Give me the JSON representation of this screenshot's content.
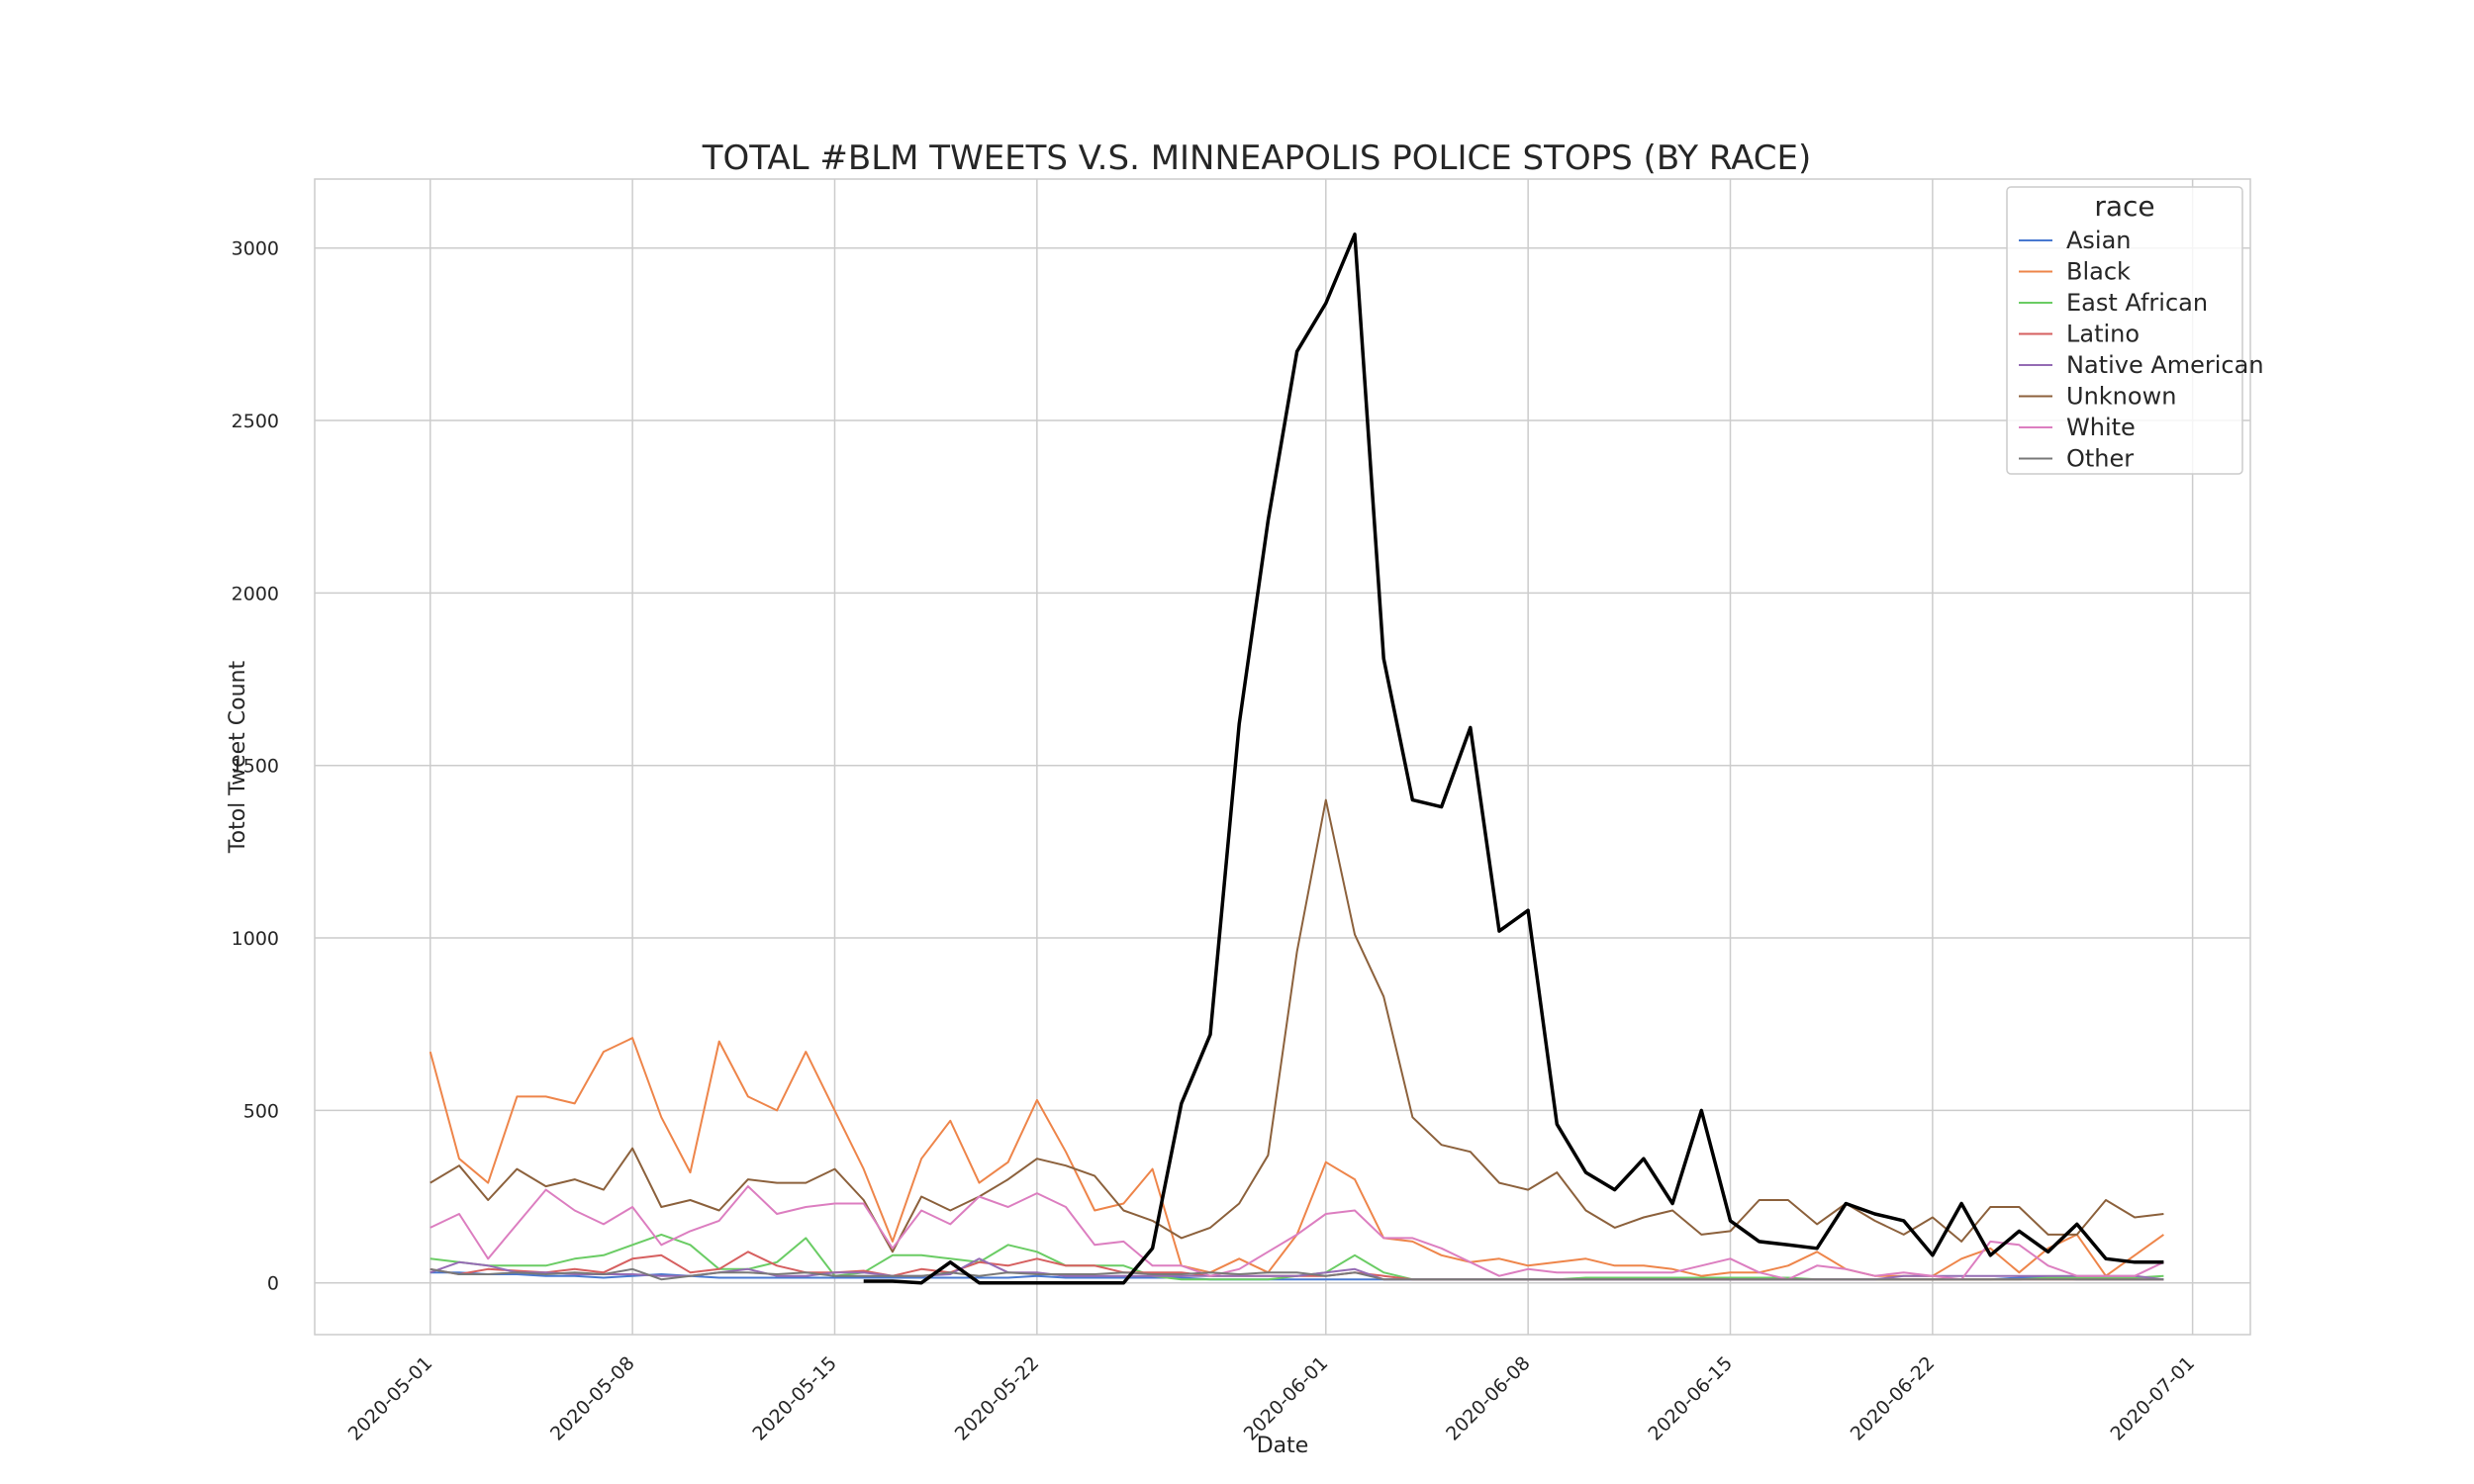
{
  "chart_data": {
    "type": "line",
    "title": "TOTAL #BLM TWEETS V.S. MINNEAPOLIS POLICE STOPS (BY RACE)",
    "xlabel": "Date",
    "ylabel": "Totol Tweet Count",
    "x_start": "2020-05-01",
    "x_end": "2020-06-30",
    "xlim": [
      "2020-04-27",
      "2020-07-03"
    ],
    "ylim": [
      -150,
      3200
    ],
    "x_ticks": [
      "2020-05-01",
      "2020-05-08",
      "2020-05-15",
      "2020-05-22",
      "2020-06-01",
      "2020-06-08",
      "2020-06-15",
      "2020-06-22",
      "2020-07-01"
    ],
    "y_ticks": [
      0,
      500,
      1000,
      1500,
      2000,
      2500,
      3000
    ],
    "grid": true,
    "legend": {
      "title": "race",
      "placement": "top-right"
    },
    "series": [
      {
        "name": "Asian",
        "color": "#4878d0",
        "values": [
          30,
          30,
          25,
          25,
          20,
          20,
          15,
          20,
          25,
          20,
          15,
          15,
          15,
          15,
          15,
          15,
          15,
          15,
          15,
          15,
          15,
          20,
          15,
          15,
          15,
          15,
          15,
          10,
          10,
          10,
          10,
          10,
          10,
          10,
          10,
          10,
          10,
          10,
          10,
          10,
          10,
          10,
          10,
          10,
          10,
          10,
          10,
          10,
          10,
          10,
          10,
          10,
          10,
          10,
          10,
          15,
          15,
          10,
          10,
          10,
          10
        ]
      },
      {
        "name": "Black",
        "color": "#ee854a",
        "values": [
          670,
          360,
          290,
          540,
          540,
          520,
          670,
          710,
          480,
          320,
          700,
          540,
          500,
          670,
          500,
          330,
          120,
          360,
          470,
          290,
          350,
          530,
          380,
          210,
          230,
          330,
          50,
          30,
          70,
          30,
          140,
          350,
          300,
          130,
          120,
          80,
          60,
          70,
          50,
          60,
          70,
          50,
          50,
          40,
          20,
          30,
          30,
          50,
          90,
          40,
          20,
          20,
          20,
          70,
          100,
          30,
          100,
          140,
          20,
          80,
          140
        ]
      },
      {
        "name": "East African",
        "color": "#6acc64",
        "values": [
          70,
          60,
          50,
          50,
          50,
          70,
          80,
          110,
          140,
          110,
          40,
          40,
          60,
          130,
          20,
          30,
          80,
          80,
          70,
          60,
          110,
          90,
          50,
          50,
          50,
          20,
          10,
          10,
          10,
          10,
          20,
          30,
          80,
          30,
          10,
          10,
          10,
          10,
          10,
          10,
          15,
          15,
          15,
          15,
          15,
          15,
          15,
          15,
          10,
          10,
          10,
          10,
          10,
          10,
          10,
          10,
          15,
          15,
          15,
          15,
          20
        ]
      },
      {
        "name": "Latino",
        "color": "#d65f5f",
        "values": [
          40,
          25,
          40,
          35,
          30,
          40,
          30,
          70,
          80,
          30,
          40,
          90,
          50,
          30,
          30,
          35,
          20,
          40,
          30,
          60,
          50,
          70,
          50,
          50,
          30,
          30,
          30,
          20,
          20,
          20,
          20,
          20,
          30,
          20,
          10,
          10,
          10,
          10,
          10,
          10,
          10,
          10,
          10,
          10,
          10,
          10,
          10,
          10,
          10,
          10,
          10,
          10,
          10,
          10,
          10,
          10,
          10,
          10,
          10,
          10,
          10
        ]
      },
      {
        "name": "Native American",
        "color": "#956cb4",
        "values": [
          30,
          60,
          50,
          30,
          30,
          25,
          25,
          25,
          20,
          20,
          30,
          40,
          20,
          20,
          30,
          30,
          20,
          20,
          25,
          70,
          30,
          30,
          20,
          20,
          20,
          20,
          20,
          20,
          20,
          20,
          20,
          30,
          40,
          10,
          10,
          10,
          10,
          10,
          10,
          10,
          10,
          10,
          10,
          10,
          10,
          10,
          10,
          10,
          10,
          10,
          10,
          20,
          20,
          20,
          20,
          20,
          20,
          20,
          20,
          20,
          10
        ]
      },
      {
        "name": "Unknown",
        "color": "#8c613c",
        "values": [
          290,
          340,
          240,
          330,
          280,
          300,
          270,
          390,
          220,
          240,
          210,
          300,
          290,
          290,
          330,
          240,
          90,
          250,
          210,
          250,
          300,
          360,
          340,
          310,
          210,
          180,
          130,
          160,
          230,
          370,
          960,
          1400,
          1010,
          830,
          480,
          400,
          380,
          290,
          270,
          320,
          210,
          160,
          190,
          210,
          140,
          150,
          240,
          240,
          170,
          230,
          180,
          140,
          190,
          120,
          220,
          220,
          140,
          140,
          240,
          190,
          200
        ]
      },
      {
        "name": "White",
        "color": "#dc7ec0",
        "values": [
          160,
          200,
          70,
          170,
          270,
          210,
          170,
          220,
          110,
          150,
          180,
          280,
          200,
          220,
          230,
          230,
          100,
          210,
          170,
          250,
          220,
          260,
          220,
          110,
          120,
          50,
          50,
          20,
          40,
          90,
          140,
          200,
          210,
          130,
          130,
          100,
          60,
          20,
          40,
          30,
          30,
          30,
          30,
          30,
          50,
          70,
          30,
          10,
          50,
          40,
          20,
          30,
          20,
          10,
          120,
          110,
          50,
          20,
          20,
          20,
          60
        ]
      },
      {
        "name": "Other",
        "color": "#797979",
        "values": [
          40,
          25,
          25,
          30,
          25,
          30,
          25,
          40,
          10,
          20,
          30,
          30,
          25,
          30,
          20,
          20,
          20,
          20,
          30,
          20,
          30,
          25,
          25,
          25,
          30,
          25,
          25,
          30,
          25,
          30,
          30,
          20,
          30,
          10,
          10,
          10,
          10,
          10,
          10,
          10,
          10,
          10,
          10,
          10,
          10,
          10,
          10,
          10,
          10,
          10,
          10,
          10,
          10,
          10,
          10,
          10,
          10,
          10,
          10,
          10,
          10
        ]
      }
    ],
    "tweets": {
      "color": "#000000",
      "start": "2020-05-16",
      "values": [
        5,
        5,
        0,
        60,
        0,
        0,
        0,
        0,
        0,
        0,
        100,
        520,
        720,
        1620,
        2210,
        2700,
        2840,
        3040,
        1810,
        1400,
        1380,
        1610,
        1020,
        1080,
        460,
        320,
        270,
        360,
        230,
        500,
        180,
        120,
        110,
        100,
        230,
        200,
        180,
        80,
        230,
        80,
        150,
        90,
        170,
        70,
        60,
        60
      ]
    }
  }
}
